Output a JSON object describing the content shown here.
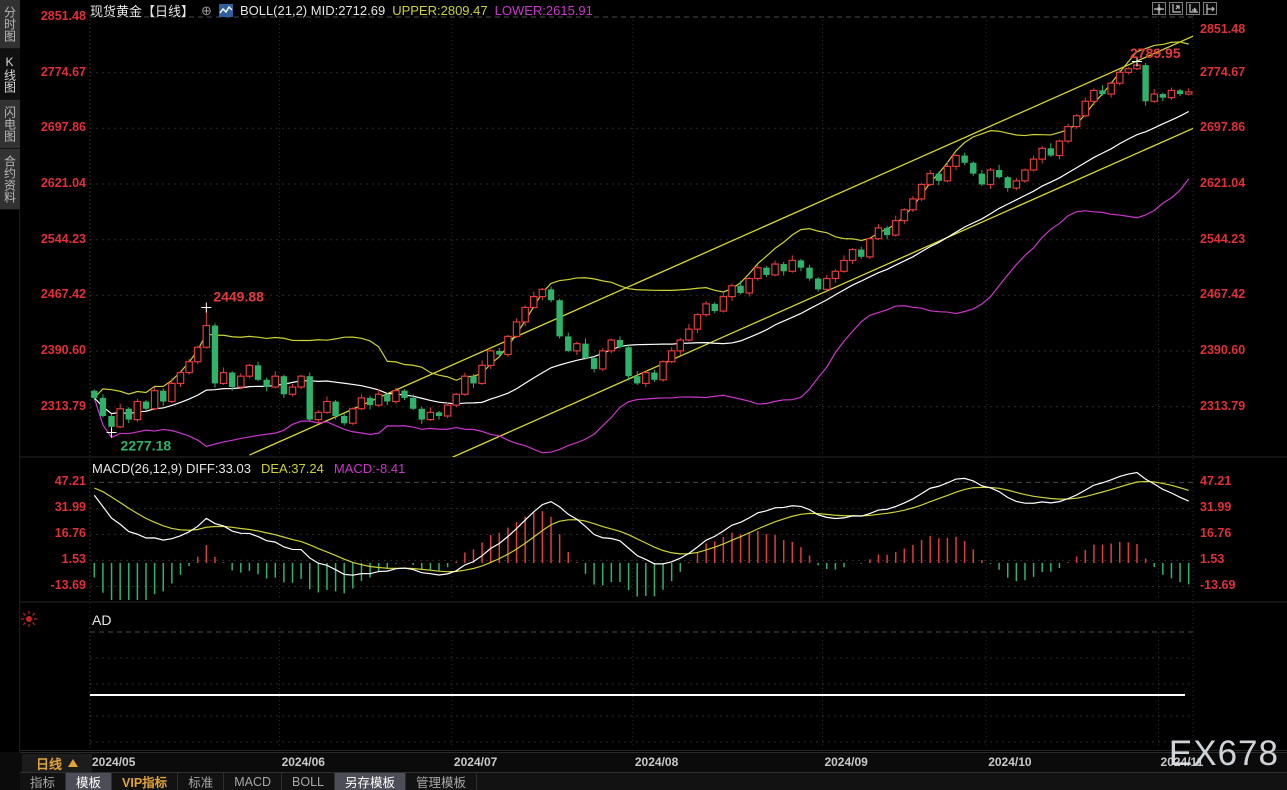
{
  "header": {
    "symbol": "现货黄金",
    "period_tag": "【日线】",
    "expand_glyph": "⊕",
    "boll_label": "BOLL(21,2)",
    "mid_text": "MID:2712.69",
    "upper_text": "UPPER:2809.47",
    "lower_text": "LOWER:2615.91"
  },
  "top_right_icons": [
    "crosshair",
    "zoom-axis-in",
    "zoom-axis-out",
    "pan-right"
  ],
  "sidebar": {
    "items": [
      {
        "label": "分时图",
        "selected": false
      },
      {
        "label": "K线图",
        "selected": true
      },
      {
        "label": "闪电图",
        "selected": false
      },
      {
        "label": "合约资料",
        "selected": false
      }
    ]
  },
  "macd_panel": {
    "title": "MACD(26,12,9)",
    "diff_text": "DIFF:33.03",
    "dea_text": "DEA:37.24",
    "macd_text": "MACD:-8.41",
    "y_axis": [
      "47.21",
      "31.99",
      "16.76",
      "1.53",
      "-13.69"
    ]
  },
  "ad_panel": {
    "label": "AD"
  },
  "x_axis": {
    "period_button": "日线",
    "dates": [
      "2024/05",
      "2024/06",
      "2024/07",
      "2024/08",
      "2024/09",
      "2024/10",
      "2024/11"
    ]
  },
  "bottom_tabs": [
    {
      "label": "指标",
      "selected": false,
      "vip": false
    },
    {
      "label": "模板",
      "selected": true,
      "vip": false
    },
    {
      "label": "VIP指标",
      "selected": false,
      "vip": true
    },
    {
      "label": "标准",
      "selected": false,
      "vip": false
    },
    {
      "label": "MACD",
      "selected": false,
      "vip": false
    },
    {
      "label": "BOLL",
      "selected": false,
      "vip": false
    },
    {
      "label": "另存模板",
      "selected": true,
      "vip": false
    },
    {
      "label": "管理模板",
      "selected": false,
      "vip": false
    }
  ],
  "watermark": "EX678",
  "colors": {
    "up": "#e23b3b",
    "down": "#2fb36a",
    "axis_text": "#e03038",
    "boll_upper": "#cdd334",
    "boll_mid": "#ffffff",
    "boll_lower": "#cc35cc",
    "trendline": "#d8d832",
    "diff_line": "#ffffff",
    "dea_line": "#cdd334",
    "accent_orange": "#e0a43c",
    "grid": "#2b2b2b",
    "grid_bright": "#4a4a4a"
  },
  "chart_data": {
    "type": "candlestick",
    "symbol": "现货黄金",
    "interval": "日线",
    "y_axis_values": [
      2851.48,
      2774.67,
      2697.86,
      2621.04,
      2544.23,
      2467.42,
      2390.6,
      2313.79
    ],
    "first_open": 2335,
    "closes": [
      2325,
      2300,
      2285,
      2310,
      2295,
      2320,
      2310,
      2335,
      2320,
      2345,
      2360,
      2375,
      2395,
      2425,
      2345,
      2360,
      2340,
      2355,
      2370,
      2350,
      2340,
      2355,
      2330,
      2340,
      2355,
      2295,
      2305,
      2320,
      2300,
      2290,
      2310,
      2325,
      2315,
      2330,
      2320,
      2335,
      2325,
      2310,
      2295,
      2305,
      2300,
      2315,
      2330,
      2355,
      2345,
      2370,
      2390,
      2385,
      2410,
      2430,
      2450,
      2465,
      2475,
      2460,
      2410,
      2390,
      2400,
      2380,
      2365,
      2390,
      2405,
      2395,
      2355,
      2345,
      2360,
      2350,
      2375,
      2390,
      2405,
      2420,
      2440,
      2455,
      2445,
      2465,
      2480,
      2470,
      2490,
      2505,
      2495,
      2510,
      2500,
      2515,
      2505,
      2490,
      2475,
      2490,
      2500,
      2515,
      2530,
      2520,
      2545,
      2560,
      2550,
      2570,
      2585,
      2600,
      2620,
      2635,
      2625,
      2645,
      2660,
      2650,
      2635,
      2620,
      2640,
      2630,
      2615,
      2625,
      2640,
      2655,
      2670,
      2660,
      2680,
      2700,
      2715,
      2735,
      2750,
      2745,
      2760,
      2775,
      2780,
      2785,
      2735,
      2745,
      2740,
      2750,
      2745,
      2748
    ],
    "month_start_indices": [
      0,
      22,
      42,
      63,
      85,
      104,
      124
    ],
    "boll": {
      "period": 21,
      "mult": 2,
      "mid": 2712.69,
      "upper": 2809.47,
      "lower": 2615.91
    },
    "macd": {
      "fast": 12,
      "slow": 26,
      "signal": 9,
      "diff": 33.03,
      "dea": 37.24,
      "macd": -8.41,
      "y_axis_values": [
        47.21,
        31.99,
        16.76,
        1.53,
        -13.69
      ]
    },
    "annotations": [
      {
        "type": "high",
        "index": 13,
        "value": 2449.88,
        "label": "2449.88"
      },
      {
        "type": "low",
        "index": 2,
        "value": 2277.18,
        "label": "2277.18"
      },
      {
        "type": "high",
        "index": 121,
        "value": 2789.95,
        "label": "2789.95"
      }
    ],
    "trendlines": [
      {
        "i1": 18,
        "p1": 2246,
        "i2": 133,
        "p2": 2854
      },
      {
        "i1": 41,
        "p1": 2240,
        "i2": 131,
        "p2": 2716
      }
    ],
    "ad_line_value_y": 695
  }
}
